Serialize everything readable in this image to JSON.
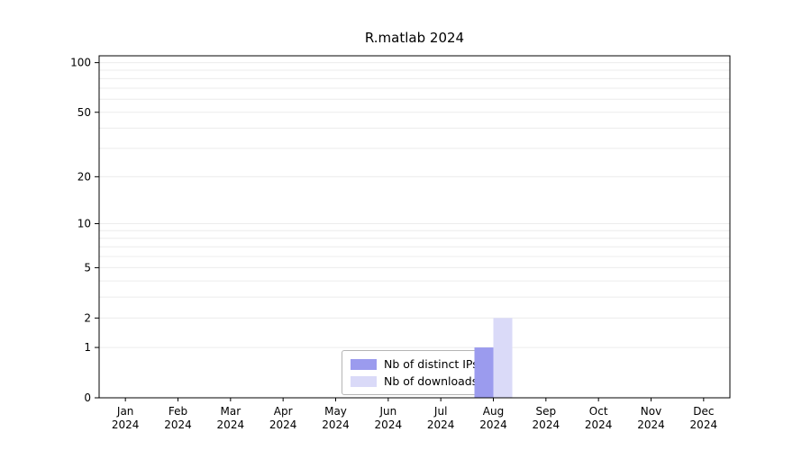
{
  "chart_data": {
    "type": "bar",
    "title": "R.matlab 2024",
    "categories": [
      "Jan",
      "Feb",
      "Mar",
      "Apr",
      "May",
      "Jun",
      "Jul",
      "Aug",
      "Sep",
      "Oct",
      "Nov",
      "Dec"
    ],
    "x_year_label": "2024",
    "series": [
      {
        "name": "Nb of distinct IPs",
        "color": "#9b9bee",
        "values": [
          0,
          0,
          0,
          0,
          0,
          0,
          0,
          1,
          0,
          0,
          0,
          0
        ]
      },
      {
        "name": "Nb of downloads",
        "color": "#dadaf8",
        "values": [
          0,
          0,
          0,
          0,
          0,
          0,
          0,
          2,
          0,
          0,
          0,
          0
        ]
      }
    ],
    "y_scale": "log1p",
    "ylim": [
      0,
      110
    ],
    "y_ticks": [
      0,
      1,
      2,
      5,
      10,
      20,
      50,
      100
    ],
    "y_minor_gridlines": [
      1,
      2,
      3,
      4,
      5,
      6,
      7,
      8,
      9,
      10,
      20,
      30,
      40,
      50,
      60,
      70,
      80,
      90,
      100
    ],
    "grid": "minor-horizontal",
    "legend_position": "bottom-center",
    "axis_color": "#000000",
    "gridline_color": "#ececec",
    "legend_border_color": "#b5b5b5"
  }
}
